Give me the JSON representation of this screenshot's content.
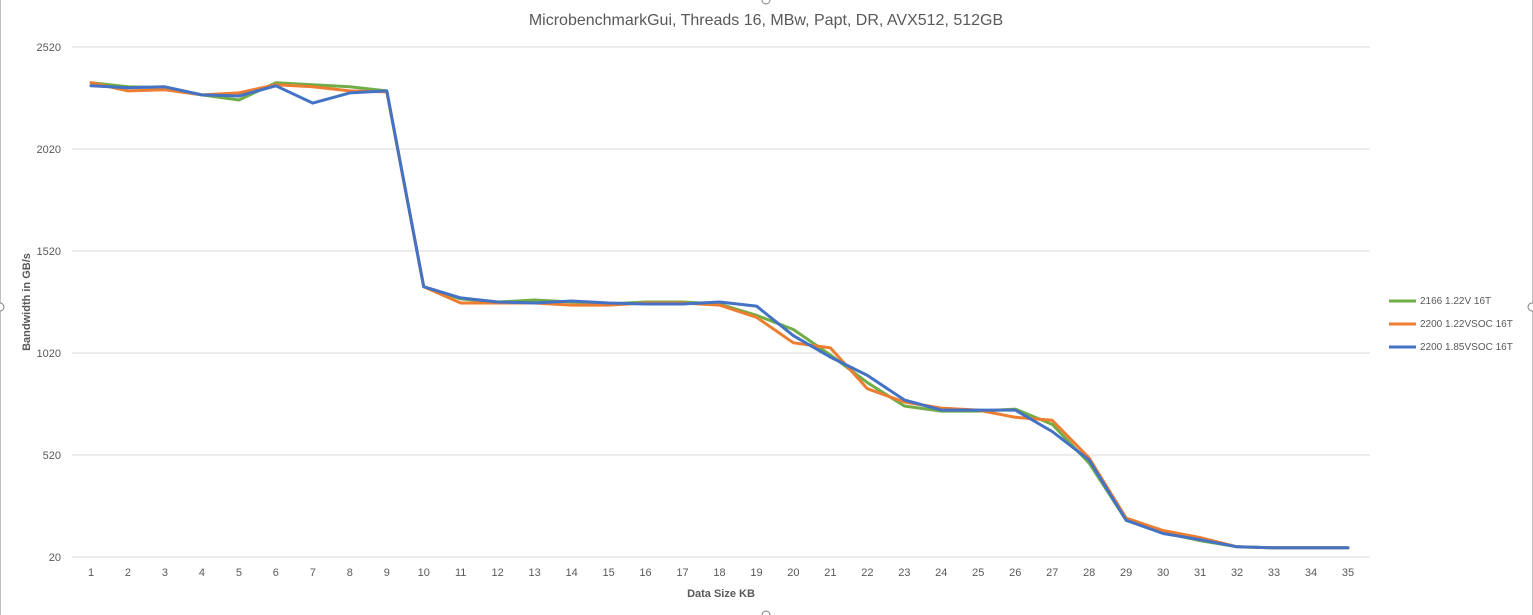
{
  "chart_data": {
    "type": "line",
    "title": "MicrobenchmarkGui, Threads 16, MBw, Papt, DR, AVX512, 512GB",
    "xlabel": "Data Size KB",
    "ylabel": "Bandwidth in GB/s",
    "ylim": [
      20,
      2520
    ],
    "yticks": [
      "20",
      "520",
      "1020",
      "1520",
      "2020",
      "2520"
    ],
    "categories": [
      "1",
      "2",
      "3",
      "4",
      "5",
      "6",
      "7",
      "8",
      "9",
      "10",
      "11",
      "12",
      "13",
      "14",
      "15",
      "16",
      "17",
      "18",
      "19",
      "20",
      "21",
      "22",
      "23",
      "24",
      "25",
      "26",
      "27",
      "28",
      "29",
      "30",
      "31",
      "32",
      "33",
      "34",
      "35"
    ],
    "grid": true,
    "legend_position": "right",
    "series": [
      {
        "name": "2166 1.22V 16T",
        "color": "#70ad47",
        "values": [
          2345,
          2325,
          2320,
          2285,
          2260,
          2345,
          2335,
          2325,
          2305,
          1345,
          1285,
          1270,
          1280,
          1270,
          1260,
          1270,
          1270,
          1260,
          1205,
          1135,
          1010,
          875,
          760,
          735,
          735,
          745,
          670,
          480,
          200,
          140,
          100,
          70,
          65,
          65,
          65
        ]
      },
      {
        "name": "2200 1.22VSOC 16T",
        "color": "#ed7d31",
        "values": [
          2345,
          2305,
          2310,
          2285,
          2295,
          2335,
          2325,
          2305,
          2300,
          1345,
          1265,
          1265,
          1265,
          1255,
          1255,
          1265,
          1265,
          1255,
          1195,
          1070,
          1045,
          845,
          780,
          750,
          740,
          705,
          690,
          505,
          210,
          150,
          115,
          70,
          65,
          65,
          65
        ]
      },
      {
        "name": "2200 1.85VSOC 16T",
        "color": "#4472c4",
        "values": [
          2330,
          2320,
          2325,
          2285,
          2280,
          2330,
          2245,
          2295,
          2305,
          1345,
          1290,
          1270,
          1265,
          1275,
          1265,
          1260,
          1260,
          1270,
          1250,
          1105,
          1000,
          910,
          790,
          740,
          740,
          740,
          635,
          495,
          200,
          135,
          105,
          70,
          65,
          65,
          65
        ]
      }
    ]
  }
}
